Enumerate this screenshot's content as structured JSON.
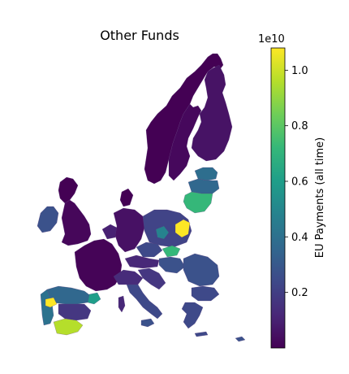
{
  "chart_data": {
    "type": "choropleth",
    "title": "Other Funds",
    "colorbar": {
      "label": "EU Payments (all time)",
      "scale_label": "1e10",
      "range": [
        0.0,
        1.08
      ],
      "ticks": [
        {
          "value": 0.2,
          "label": "0.2"
        },
        {
          "value": 0.4,
          "label": "0.4"
        },
        {
          "value": 0.6,
          "label": "0.6"
        },
        {
          "value": 0.8,
          "label": "0.8"
        },
        {
          "value": 1.0,
          "label": "1.0"
        }
      ],
      "colormap": "viridis",
      "colormap_stops": [
        "#440154",
        "#482878",
        "#3e4989",
        "#31688e",
        "#26828e",
        "#1f9e89",
        "#35b779",
        "#6ece58",
        "#b5de2b",
        "#fde725"
      ]
    }
  }
}
